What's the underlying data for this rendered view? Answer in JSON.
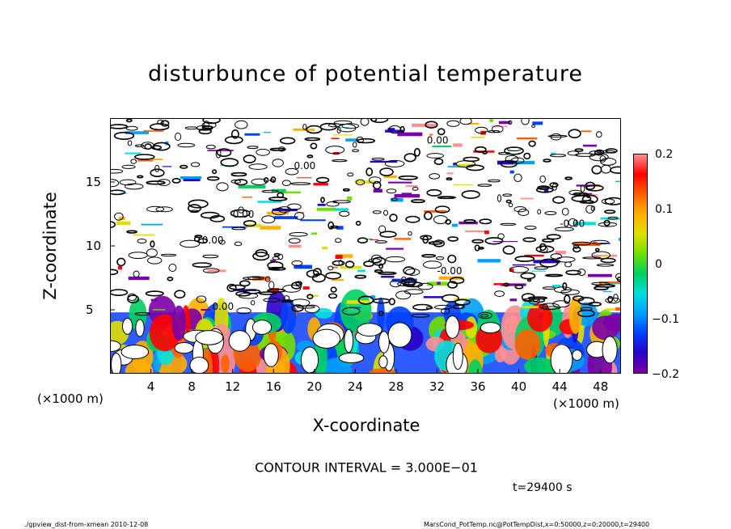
{
  "chart_data": {
    "type": "heatmap",
    "title": "disturbunce of potential temperature",
    "xlabel": "X-coordinate",
    "ylabel": "Z-coordinate",
    "x_ticks": [
      "4",
      "8",
      "12",
      "16",
      "20",
      "24",
      "28",
      "32",
      "36",
      "40",
      "44",
      "48"
    ],
    "y_ticks": [
      "5",
      "10",
      "15"
    ],
    "x_unit": "(×1000 m)",
    "y_unit": "(×1000 m)",
    "xlim": [
      0,
      50
    ],
    "ylim": [
      0,
      20
    ],
    "colorbar": {
      "ticks": [
        "0.2",
        "0.1",
        "0",
        "−0.1",
        "−0.2"
      ],
      "range": [
        -0.2,
        0.2
      ]
    },
    "contour_labels": [
      "0.00",
      "0.00",
      "-0.00",
      "0.00",
      "-0.00",
      "0.00",
      "0.00"
    ],
    "contour_interval": "CONTOUR INTERVAL = 3.000E−01",
    "time": "t=29400 s"
  },
  "footer": {
    "left": "./gpview_dist-from-xmean  2010-12-08",
    "right": "MarsCond_PotTemp.nc@PotTempDist,x=0:50000,z=0:20000,t=29400"
  },
  "colors": {
    "palette": [
      "#7a00a8",
      "#2a00c8",
      "#0040ff",
      "#00a0ff",
      "#00e0e0",
      "#00d060",
      "#70e000",
      "#e0e000",
      "#ffb000",
      "#ff6000",
      "#ff0000",
      "#ff9090"
    ]
  }
}
